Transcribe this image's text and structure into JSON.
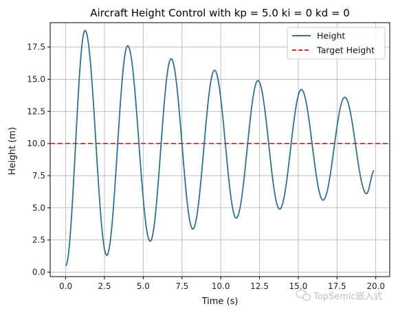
{
  "chart_data": {
    "type": "line",
    "title": "Aircraft Height Control with  kp = 5.0 ki = 0 kd = 0",
    "xlabel": "Time (s)",
    "ylabel": "Height (m)",
    "xlim": [
      -1.0,
      20.9
    ],
    "ylim": [
      -0.35,
      19.4
    ],
    "xticks": [
      0.0,
      2.5,
      5.0,
      7.5,
      10.0,
      12.5,
      15.0,
      17.5,
      20.0
    ],
    "yticks": [
      0.0,
      2.5,
      5.0,
      7.5,
      10.0,
      12.5,
      15.0,
      17.5
    ],
    "xtick_labels": [
      "0.0",
      "2.5",
      "5.0",
      "7.5",
      "10.0",
      "12.5",
      "15.0",
      "17.5",
      "20.0"
    ],
    "ytick_labels": [
      "0.0",
      "2.5",
      "5.0",
      "7.5",
      "10.0",
      "12.5",
      "15.0",
      "17.5"
    ],
    "grid": true,
    "legend_position": "top-right",
    "series": [
      {
        "name": "Height",
        "color": "#2f6f94",
        "style": "solid",
        "points": [
          [
            0.0,
            0.5
          ],
          [
            1.25,
            18.8
          ],
          [
            2.65,
            1.3
          ],
          [
            4.0,
            17.6
          ],
          [
            5.45,
            2.4
          ],
          [
            6.8,
            16.6
          ],
          [
            8.2,
            3.35
          ],
          [
            9.6,
            15.7
          ],
          [
            11.0,
            4.2
          ],
          [
            12.4,
            14.9
          ],
          [
            13.8,
            4.9
          ],
          [
            15.2,
            14.2
          ],
          [
            16.6,
            5.6
          ],
          [
            18.0,
            13.6
          ],
          [
            19.4,
            6.1
          ],
          [
            19.9,
            7.9
          ]
        ]
      },
      {
        "name": "Target Height",
        "color": "#d62728",
        "style": "dashed",
        "points": [
          [
            -1.0,
            10.0
          ],
          [
            20.9,
            10.0
          ]
        ]
      }
    ]
  },
  "watermark": {
    "text": "TopSemic嵌入式",
    "icon": "wechat-icon"
  }
}
